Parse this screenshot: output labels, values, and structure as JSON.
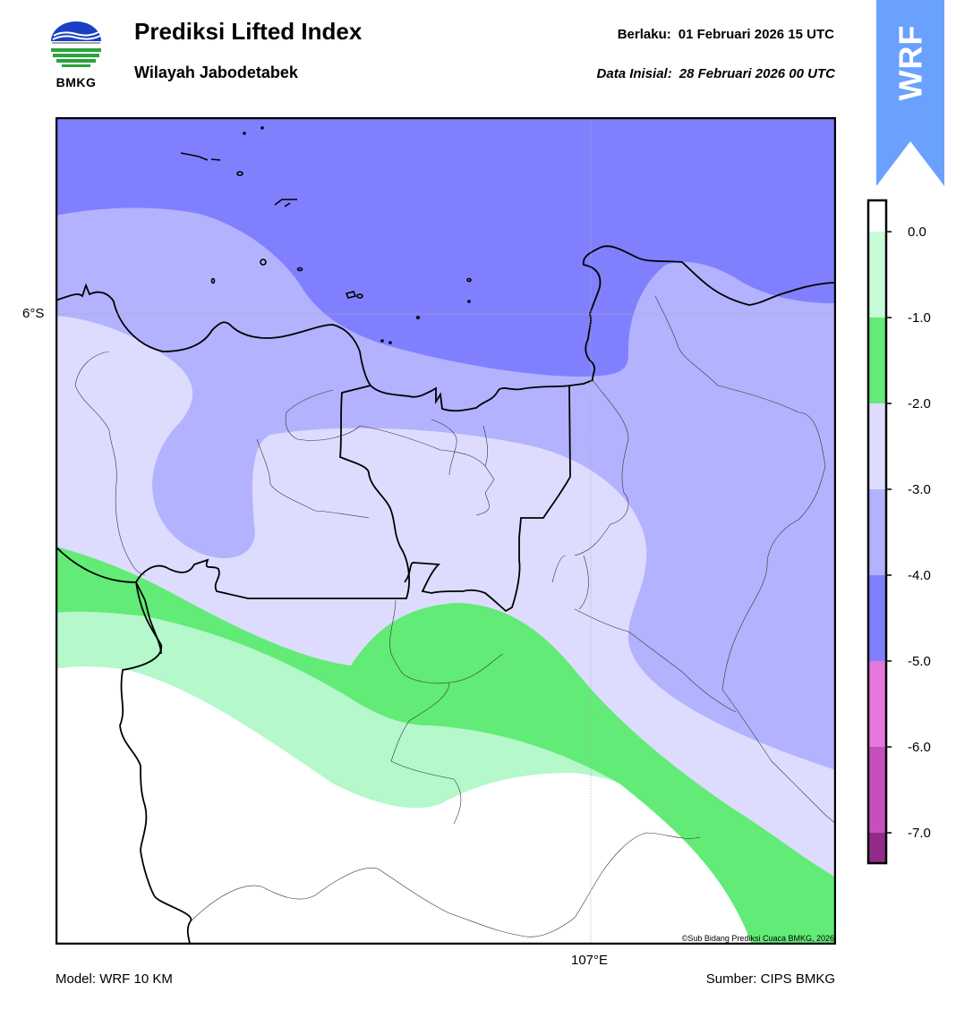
{
  "header": {
    "title": "Prediksi Lifted Index",
    "subtitle": "Wilayah Jabodetabek",
    "valid_label": "Berlaku:",
    "valid_value": "01 Februari 2026 15 UTC",
    "init_label": "Data Inisial:",
    "init_value": "28 Februari 2026 00 UTC"
  },
  "logo": {
    "text": "BMKG",
    "icon": "bmkg-logo-icon"
  },
  "ribbon": {
    "text": "WRF",
    "color": "#6aa1ff"
  },
  "map": {
    "lat_label": "6°S",
    "lon_label": "107°E",
    "copyright": "©Sub Bidang Prediksi Cuaca BMKG, 2026"
  },
  "colorbar": {
    "ticks": [
      "0.0",
      "-1.0",
      "-2.0",
      "-3.0",
      "-4.0",
      "-5.0",
      "-6.0",
      "-7.0"
    ],
    "colors": [
      "#c8fcd9",
      "#62eb76",
      "#dddcfe",
      "#b3b2fe",
      "#8080fe",
      "#e678dd",
      "#c64fbd",
      "#932b8a"
    ]
  },
  "footer": {
    "model": "Model: WRF 10 KM",
    "source": "Sumber: CIPS BMKG"
  }
}
